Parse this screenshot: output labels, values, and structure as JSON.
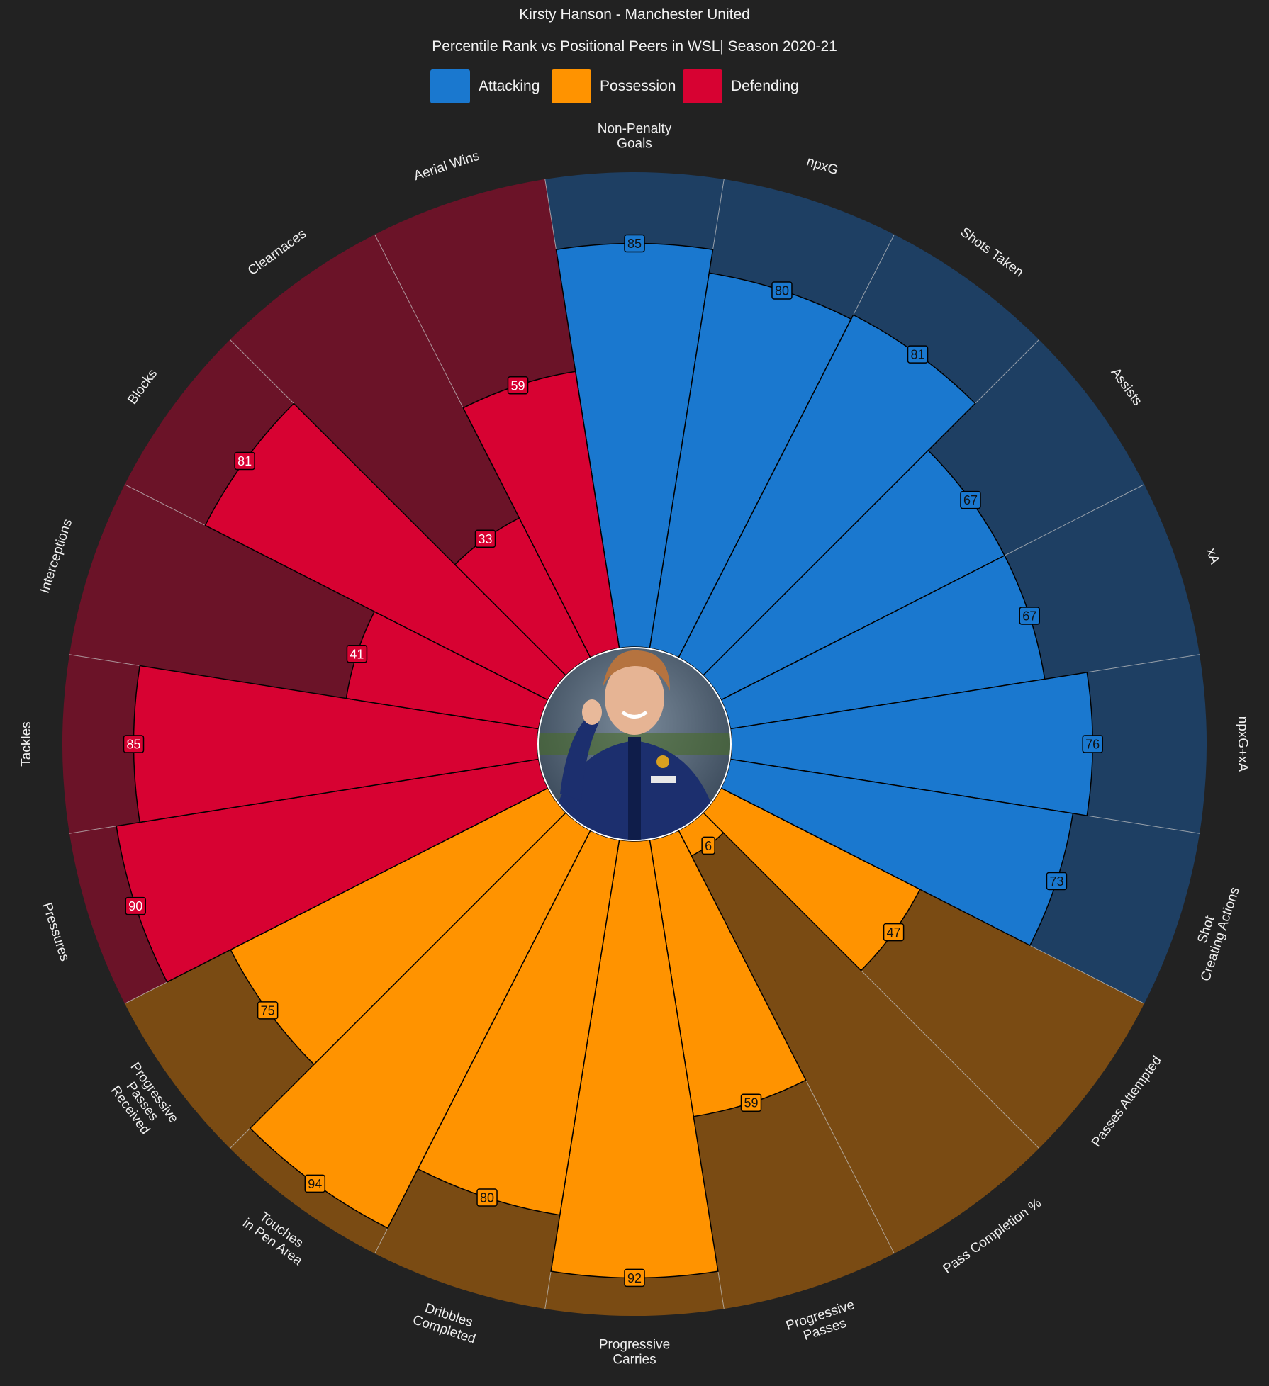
{
  "title": "Kirsty Hanson - Manchester United",
  "subtitle": "Percentile Rank vs Positional Peers in WSL| Season 2020-21",
  "legend": [
    {
      "label": "Attacking",
      "color": "#1a78cf"
    },
    {
      "label": "Possession",
      "color": "#ff9300"
    },
    {
      "label": "Defending",
      "color": "#d70232"
    }
  ],
  "colors": {
    "background": "#222222",
    "attacking_dark": "#1e3f63",
    "possession_dark": "#7a4b13",
    "defending_dark": "#6b1328"
  },
  "player_photo": "player-photo",
  "chart_data": {
    "type": "polar-bar",
    "title": "Kirsty Hanson - Manchester United",
    "subtitle": "Percentile Rank vs Positional Peers in WSL| Season 2020-21",
    "range": [
      0,
      100
    ],
    "categories": [
      "Non-Penalty\nGoals",
      "npxG",
      "Shots Taken",
      "Assists",
      "xA",
      "npxG+xA",
      "Shot\nCreating Actions",
      "Passes Attempted",
      "Pass Completion %",
      "Progressive\nPasses",
      "Progressive\nCarries",
      "Dribbles\nCompleted",
      "Touches\nin Pen Area",
      "Progressive\nPasses\nReceived",
      "Pressures",
      "Tackles",
      "Interceptions",
      "Blocks",
      "Clearnaces",
      "Aerial Wins"
    ],
    "values": [
      85,
      80,
      81,
      67,
      67,
      76,
      73,
      47,
      6,
      59,
      92,
      80,
      94,
      75,
      90,
      85,
      41,
      81,
      33,
      59
    ],
    "groups": [
      "Attacking",
      "Attacking",
      "Attacking",
      "Attacking",
      "Attacking",
      "Attacking",
      "Attacking",
      "Possession",
      "Possession",
      "Possession",
      "Possession",
      "Possession",
      "Possession",
      "Possession",
      "Defending",
      "Defending",
      "Defending",
      "Defending",
      "Defending",
      "Defending"
    ]
  }
}
